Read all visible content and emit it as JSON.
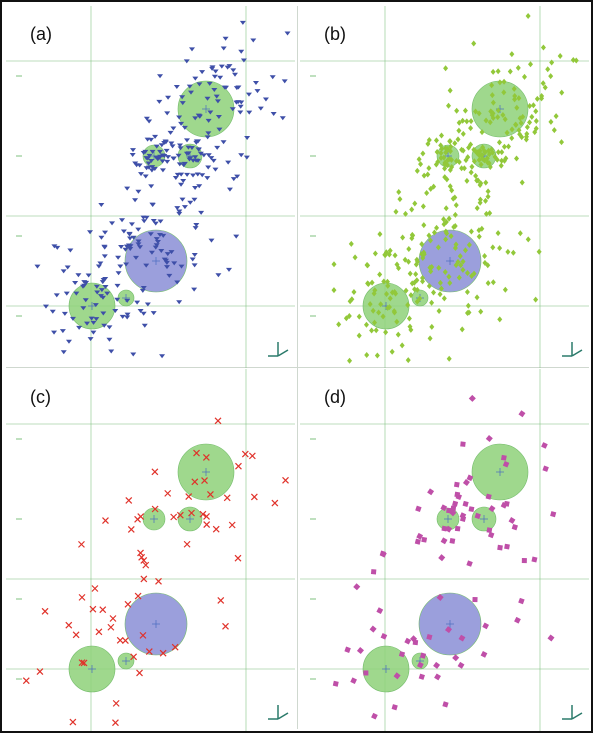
{
  "panels": [
    {
      "id": "a",
      "label": "(a)",
      "marker": "triangle",
      "color": "#3e4fa8"
    },
    {
      "id": "b",
      "label": "(b)",
      "marker": "diamond",
      "color": "#92c83a"
    },
    {
      "id": "c",
      "label": "(c)",
      "marker": "cross",
      "color": "#e0322a"
    },
    {
      "id": "d",
      "label": "(d)",
      "marker": "square",
      "color": "#bf4fa8"
    }
  ],
  "colors": {
    "halo_green": "#8fd27a",
    "halo_green_edge": "#5bb050",
    "halo_blue": "#8a8fd6",
    "grid": "#7fc07f",
    "border": "#111111"
  }
}
